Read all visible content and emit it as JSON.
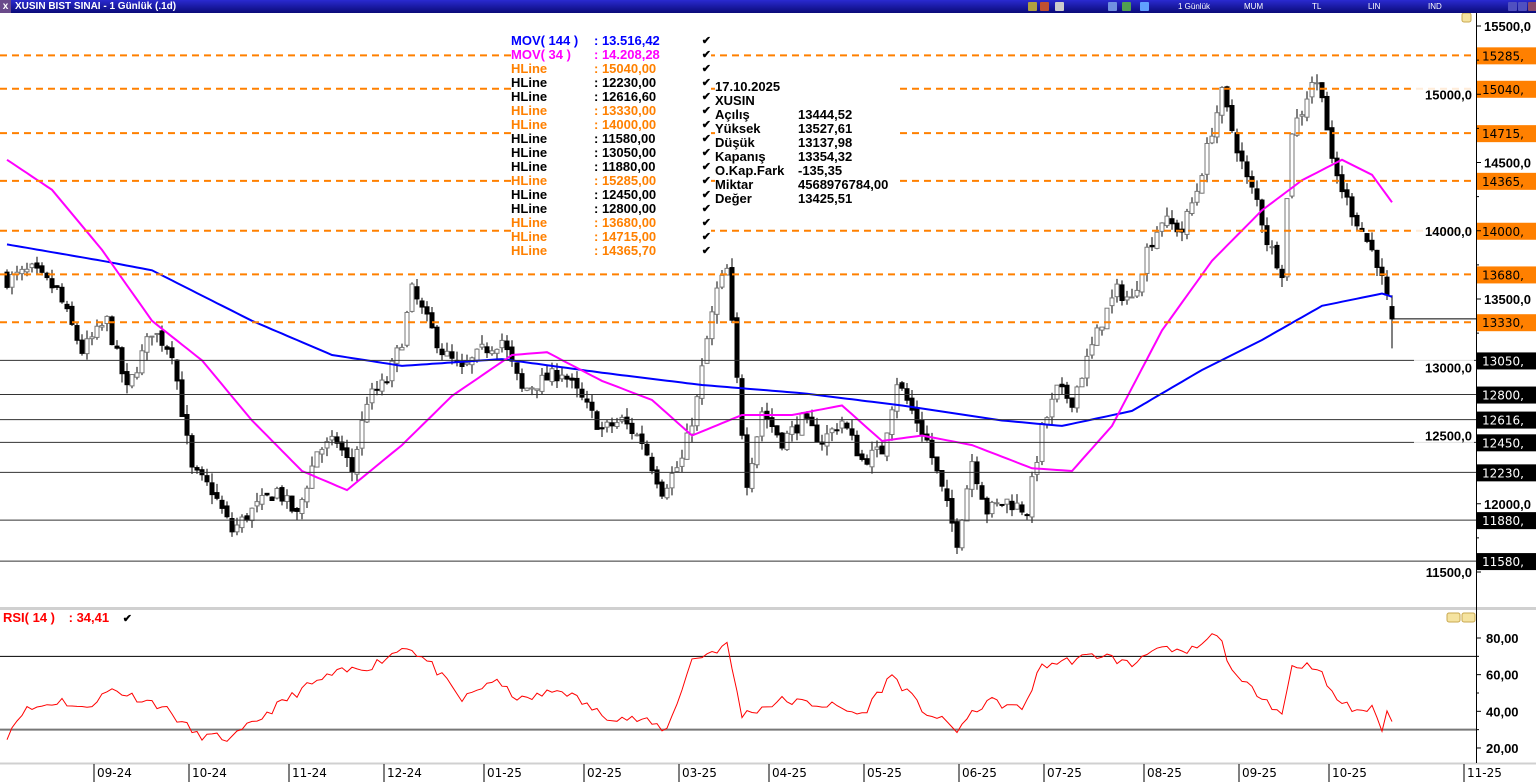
{
  "window": {
    "title": "XUSIN BIST SINAI - 1 Günlük (.1d)",
    "close_label": "x",
    "toolbar": [
      {
        "label": "1 Günlük"
      },
      {
        "label": "MUM"
      },
      {
        "label": "TL"
      },
      {
        "label": "LIN"
      },
      {
        "label": "IND"
      }
    ]
  },
  "legend": [
    {
      "name": "MOV( 144 )",
      "value": ": 13.516,42",
      "color": "#0000ff"
    },
    {
      "name": "MOV( 34 )",
      "value": ": 14.208,28",
      "color": "#ff00ff"
    },
    {
      "name": "HLine",
      "value": ": 15040,00",
      "color": "#ff8000"
    },
    {
      "name": "HLine",
      "value": ": 12230,00",
      "color": "#000000"
    },
    {
      "name": "HLine",
      "value": ": 12616,60",
      "color": "#000000"
    },
    {
      "name": "HLine",
      "value": ": 13330,00",
      "color": "#ff8000"
    },
    {
      "name": "HLine",
      "value": ": 14000,00",
      "color": "#ff8000"
    },
    {
      "name": "HLine",
      "value": ": 11580,00",
      "color": "#000000"
    },
    {
      "name": "HLine",
      "value": ": 13050,00",
      "color": "#000000"
    },
    {
      "name": "HLine",
      "value": ": 11880,00",
      "color": "#000000"
    },
    {
      "name": "HLine",
      "value": ": 15285,00",
      "color": "#ff8000"
    },
    {
      "name": "HLine",
      "value": ": 12450,00",
      "color": "#000000"
    },
    {
      "name": "HLine",
      "value": ": 12800,00",
      "color": "#000000"
    },
    {
      "name": "HLine",
      "value": ": 13680,00",
      "color": "#ff8000"
    },
    {
      "name": "HLine",
      "value": ": 14715,00",
      "color": "#ff8000"
    },
    {
      "name": "HLine",
      "value": ": 14365,70",
      "color": "#ff8000"
    }
  ],
  "check_glyph": "✔",
  "info": {
    "date": "17.10.2025",
    "symbol": "XUSIN",
    "rows": [
      {
        "k": "Açılış",
        "v": "13444,52"
      },
      {
        "k": "Yüksek",
        "v": "13527,61"
      },
      {
        "k": "Düşük",
        "v": "13137,98"
      },
      {
        "k": "Kapanış",
        "v": "13354,32"
      },
      {
        "k": "O.Kap.Fark",
        "v": "-135,35"
      },
      {
        "k": "Miktar",
        "v": "4568976784,00"
      },
      {
        "k": "Değer",
        "v": "13425,51"
      }
    ]
  },
  "rsi_legend": {
    "label": "RSI( 14 )",
    "value": ": 34,41"
  },
  "chart_data": {
    "type": "candlestick",
    "price_axis": {
      "ticks": [
        15500,
        15000,
        14500,
        14000,
        13500,
        13000,
        12500,
        12000,
        11500
      ],
      "ylim": [
        11420,
        15590
      ]
    },
    "hlines": [
      {
        "value": 15285,
        "label": "15285,",
        "style": "dashed",
        "color": "#ff8000"
      },
      {
        "value": 15040,
        "label": "15040,",
        "style": "dashed",
        "color": "#ff8000"
      },
      {
        "value": 14715,
        "label": "14715,",
        "style": "dashed",
        "color": "#ff8000"
      },
      {
        "value": 14365.7,
        "label": "14365,",
        "style": "dashed",
        "color": "#ff8000"
      },
      {
        "value": 14000,
        "label": "14000,",
        "style": "dashed",
        "color": "#ff8000"
      },
      {
        "value": 13680,
        "label": "13680,",
        "style": "dashed",
        "color": "#ff8000"
      },
      {
        "value": 13330,
        "label": "13330,",
        "style": "dashed",
        "color": "#ff8000"
      },
      {
        "value": 13050,
        "label": "13050,",
        "style": "solid",
        "color": "#000000"
      },
      {
        "value": 12800,
        "label": "12800,",
        "style": "solid",
        "color": "#000000"
      },
      {
        "value": 12616.6,
        "label": "12616,",
        "style": "solid",
        "color": "#000000"
      },
      {
        "value": 12450,
        "label": "12450,",
        "style": "solid",
        "color": "#000000"
      },
      {
        "value": 12230,
        "label": "12230,",
        "style": "solid",
        "color": "#000000"
      },
      {
        "value": 11880,
        "label": "11880,",
        "style": "solid",
        "color": "#000000"
      },
      {
        "value": 11580,
        "label": "11580,",
        "style": "solid",
        "color": "#000000"
      }
    ],
    "bars": 278,
    "close_anchors": [
      [
        0,
        13640
      ],
      [
        5,
        13710
      ],
      [
        10,
        13560
      ],
      [
        15,
        13120
      ],
      [
        20,
        13340
      ],
      [
        24,
        12830
      ],
      [
        29,
        13270
      ],
      [
        33,
        13120
      ],
      [
        37,
        12240
      ],
      [
        41,
        12100
      ],
      [
        45,
        11800
      ],
      [
        49,
        11950
      ],
      [
        54,
        12100
      ],
      [
        58,
        11910
      ],
      [
        62,
        12390
      ],
      [
        66,
        12460
      ],
      [
        69,
        12240
      ],
      [
        72,
        12760
      ],
      [
        76,
        12900
      ],
      [
        79,
        13200
      ],
      [
        81,
        13560
      ],
      [
        84,
        13340
      ],
      [
        87,
        13120
      ],
      [
        91,
        12970
      ],
      [
        95,
        13120
      ],
      [
        99,
        13200
      ],
      [
        103,
        12830
      ],
      [
        107,
        12900
      ],
      [
        111,
        12970
      ],
      [
        115,
        12760
      ],
      [
        119,
        12540
      ],
      [
        123,
        12610
      ],
      [
        127,
        12460
      ],
      [
        131,
        12100
      ],
      [
        135,
        12320
      ],
      [
        138,
        12760
      ],
      [
        140,
        13200
      ],
      [
        142,
        13560
      ],
      [
        144,
        13710
      ],
      [
        146,
        12900
      ],
      [
        148,
        12170
      ],
      [
        151,
        12680
      ],
      [
        155,
        12460
      ],
      [
        159,
        12610
      ],
      [
        163,
        12460
      ],
      [
        167,
        12610
      ],
      [
        171,
        12320
      ],
      [
        175,
        12390
      ],
      [
        178,
        12900
      ],
      [
        181,
        12680
      ],
      [
        184,
        12460
      ],
      [
        187,
        12100
      ],
      [
        190,
        11730
      ],
      [
        193,
        12320
      ],
      [
        196,
        11950
      ],
      [
        200,
        12020
      ],
      [
        204,
        11950
      ],
      [
        207,
        12540
      ],
      [
        210,
        12830
      ],
      [
        213,
        12760
      ],
      [
        216,
        13050
      ],
      [
        219,
        13340
      ],
      [
        222,
        13560
      ],
      [
        225,
        13490
      ],
      [
        228,
        13860
      ],
      [
        231,
        14080
      ],
      [
        235,
        14000
      ],
      [
        238,
        14300
      ],
      [
        241,
        14740
      ],
      [
        243,
        15000
      ],
      [
        245,
        14740
      ],
      [
        248,
        14370
      ],
      [
        250,
        14220
      ],
      [
        252,
        13930
      ],
      [
        255,
        13710
      ],
      [
        257,
        14740
      ],
      [
        259,
        14880
      ],
      [
        261,
        15100
      ],
      [
        263,
        15030
      ],
      [
        265,
        14480
      ],
      [
        268,
        14220
      ],
      [
        271,
        14000
      ],
      [
        274,
        13780
      ],
      [
        276,
        13490
      ],
      [
        277,
        13354.32
      ]
    ],
    "last_bar": {
      "open": 13444.52,
      "high": 13527.61,
      "low": 13137.98,
      "close": 13354.32
    },
    "last_price_line": 13354.32,
    "ma144": {
      "name": "MOV( 144 )",
      "color": "#0000ff",
      "anchors": [
        [
          0,
          13900
        ],
        [
          19,
          13780
        ],
        [
          29,
          13710
        ],
        [
          49,
          13340
        ],
        [
          65,
          13090
        ],
        [
          79,
          13010
        ],
        [
          99,
          13060
        ],
        [
          119,
          12960
        ],
        [
          139,
          12870
        ],
        [
          159,
          12810
        ],
        [
          179,
          12720
        ],
        [
          199,
          12610
        ],
        [
          211,
          12570
        ],
        [
          225,
          12680
        ],
        [
          239,
          12980
        ],
        [
          251,
          13200
        ],
        [
          263,
          13450
        ],
        [
          275,
          13540
        ],
        [
          277,
          13516.42
        ]
      ]
    },
    "ma34": {
      "name": "MOV( 34 )",
      "color": "#ff00ff",
      "anchors": [
        [
          0,
          14520
        ],
        [
          9,
          14300
        ],
        [
          19,
          13860
        ],
        [
          29,
          13340
        ],
        [
          39,
          13050
        ],
        [
          49,
          12610
        ],
        [
          59,
          12240
        ],
        [
          68,
          12100
        ],
        [
          79,
          12430
        ],
        [
          89,
          12790
        ],
        [
          101,
          13090
        ],
        [
          108,
          13110
        ],
        [
          119,
          12900
        ],
        [
          129,
          12760
        ],
        [
          137,
          12500
        ],
        [
          147,
          12650
        ],
        [
          157,
          12650
        ],
        [
          167,
          12720
        ],
        [
          175,
          12460
        ],
        [
          183,
          12500
        ],
        [
          193,
          12430
        ],
        [
          205,
          12260
        ],
        [
          213,
          12240
        ],
        [
          221,
          12570
        ],
        [
          231,
          13270
        ],
        [
          241,
          13780
        ],
        [
          251,
          14150
        ],
        [
          259,
          14370
        ],
        [
          267,
          14520
        ],
        [
          273,
          14410
        ],
        [
          277,
          14208.28
        ]
      ]
    },
    "rsi": {
      "name": "RSI( 14 )",
      "color": "#ff0000",
      "ticks": [
        80,
        60,
        40,
        20
      ],
      "levels": [
        70,
        30
      ],
      "ylim": [
        14,
        86
      ],
      "anchors": [
        [
          0,
          27
        ],
        [
          3,
          40
        ],
        [
          11,
          46
        ],
        [
          15,
          41
        ],
        [
          21,
          52
        ],
        [
          31,
          43
        ],
        [
          38,
          27
        ],
        [
          45,
          25
        ],
        [
          53,
          41
        ],
        [
          59,
          52
        ],
        [
          65,
          60
        ],
        [
          73,
          65
        ],
        [
          80,
          76
        ],
        [
          85,
          65
        ],
        [
          91,
          46
        ],
        [
          97,
          57
        ],
        [
          103,
          46
        ],
        [
          111,
          52
        ],
        [
          119,
          38
        ],
        [
          127,
          35
        ],
        [
          132,
          30
        ],
        [
          137,
          68
        ],
        [
          144,
          76
        ],
        [
          147,
          38
        ],
        [
          155,
          46
        ],
        [
          165,
          43
        ],
        [
          171,
          38
        ],
        [
          177,
          60
        ],
        [
          183,
          41
        ],
        [
          190,
          30
        ],
        [
          196,
          46
        ],
        [
          203,
          41
        ],
        [
          207,
          65
        ],
        [
          213,
          68
        ],
        [
          219,
          71
        ],
        [
          225,
          65
        ],
        [
          229,
          75
        ],
        [
          235,
          71
        ],
        [
          239,
          76
        ],
        [
          242,
          83
        ],
        [
          246,
          57
        ],
        [
          251,
          49
        ],
        [
          255,
          38
        ],
        [
          257,
          65
        ],
        [
          262,
          65
        ],
        [
          265,
          49
        ],
        [
          269,
          41
        ],
        [
          273,
          41
        ],
        [
          275,
          31
        ],
        [
          276,
          40
        ],
        [
          277,
          34.41
        ]
      ]
    },
    "x_axis": {
      "labels": [
        {
          "label": "09-24",
          "bar": 20
        },
        {
          "label": "10-24",
          "bar": 39
        },
        {
          "label": "11-24",
          "bar": 59
        },
        {
          "label": "12-24",
          "bar": 78
        },
        {
          "label": "01-25",
          "bar": 98
        },
        {
          "label": "02-25",
          "bar": 118
        },
        {
          "label": "03-25",
          "bar": 137
        },
        {
          "label": "04-25",
          "bar": 155
        },
        {
          "label": "05-25",
          "bar": 174
        },
        {
          "label": "06-25",
          "bar": 193
        },
        {
          "label": "07-25",
          "bar": 210
        },
        {
          "label": "08-25",
          "bar": 230
        },
        {
          "label": "09-25",
          "bar": 249
        },
        {
          "label": "10-25",
          "bar": 267
        },
        {
          "label": "11-25",
          "bar": 294
        }
      ]
    }
  }
}
